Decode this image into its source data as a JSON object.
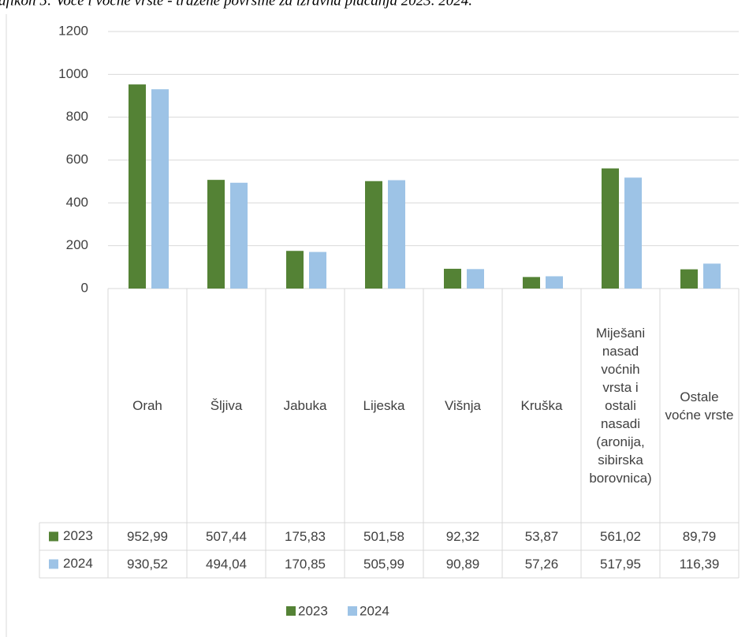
{
  "chart_data": {
    "type": "bar",
    "title": "afikon 5: Voće i voćne vrste - tražene površine za izravna plaćanja 2023. 2024.",
    "categories": [
      "Orah",
      "Šljiva",
      "Jabuka",
      "Lijeska",
      "Višnja",
      "Kruška",
      "Miješani nasad voćnih vrsta i ostali nasadi (aronija, sibirska borovnica)",
      "Ostale voćne vrste"
    ],
    "series": [
      {
        "name": "2023",
        "color": "#548235",
        "values": [
          952.99,
          507.44,
          175.83,
          501.58,
          92.32,
          53.87,
          561.02,
          89.79
        ],
        "value_labels": [
          "952,99",
          "507,44",
          "175,83",
          "501,58",
          "92,32",
          "53,87",
          "561,02",
          "89,79"
        ]
      },
      {
        "name": "2024",
        "color": "#9dc3e6",
        "values": [
          930.52,
          494.04,
          170.85,
          505.99,
          90.89,
          57.26,
          517.95,
          116.39
        ],
        "value_labels": [
          "930,52",
          "494,04",
          "170,85",
          "505,99",
          "90,89",
          "57,26",
          "517,95",
          "116,39"
        ]
      }
    ],
    "ylim": [
      0,
      1200
    ],
    "yticks": [
      0,
      200,
      400,
      600,
      800,
      1000,
      1200
    ],
    "grid": true,
    "legend": "bottom"
  }
}
